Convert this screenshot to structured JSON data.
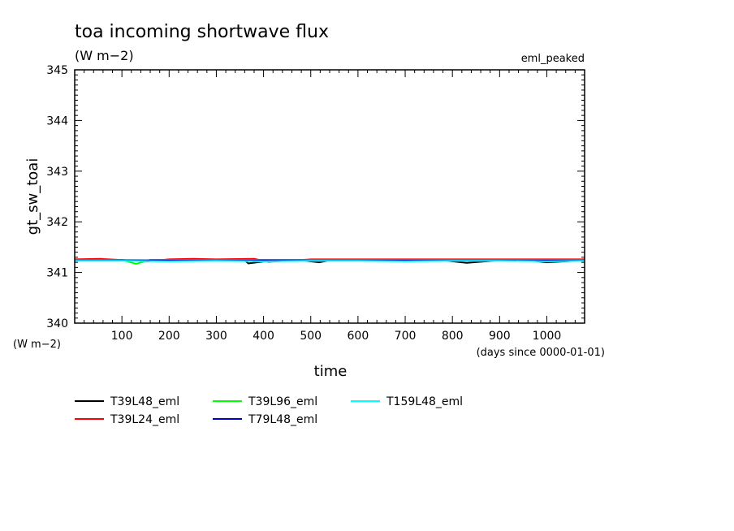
{
  "chart_data": {
    "type": "line",
    "title": "toa incoming shortwave flux",
    "subtitle": "(W m−2)",
    "run_label": "eml_peaked",
    "ylabel": "gt_sw_toai",
    "yunit_label": "(W m−2)",
    "xlabel": "time",
    "xunit_label": "(days since 0000-01-01)",
    "xlim": [
      0,
      1080
    ],
    "ylim": [
      340,
      345
    ],
    "xticks": [
      100,
      200,
      300,
      400,
      500,
      600,
      700,
      800,
      900,
      1000
    ],
    "yticks": [
      340,
      341,
      342,
      343,
      344,
      345
    ],
    "grid": false,
    "legend_position": "bottom-left",
    "series": [
      {
        "name": "T39L48_eml",
        "color": "#000000",
        "x": [
          0,
          60,
          120,
          180,
          240,
          300,
          360,
          368,
          420,
          480,
          518,
          540,
          600,
          660,
          720,
          780,
          830,
          900,
          960,
          1000,
          1080
        ],
        "y": [
          341.24,
          341.24,
          341.24,
          341.23,
          341.24,
          341.24,
          341.24,
          341.18,
          341.24,
          341.24,
          341.2,
          341.24,
          341.24,
          341.24,
          341.24,
          341.24,
          341.19,
          341.24,
          341.24,
          341.2,
          341.24
        ]
      },
      {
        "name": "T39L24_eml",
        "color": "#ff0000",
        "x": [
          0,
          55,
          155,
          200,
          250,
          300,
          380,
          410,
          500,
          600,
          700,
          800,
          900,
          1000,
          1080
        ],
        "y": [
          341.26,
          341.27,
          341.22,
          341.26,
          341.27,
          341.26,
          341.27,
          341.21,
          341.26,
          341.26,
          341.26,
          341.26,
          341.26,
          341.26,
          341.26
        ]
      },
      {
        "name": "T39L96_eml",
        "color": "#00ff00",
        "x": [
          0,
          60,
          100,
          130,
          160,
          200,
          300,
          400,
          500,
          600,
          700,
          800,
          900,
          1000,
          1080
        ],
        "y": [
          341.25,
          341.25,
          341.25,
          341.17,
          341.25,
          341.25,
          341.25,
          341.25,
          341.25,
          341.25,
          341.25,
          341.25,
          341.25,
          341.25,
          341.25
        ]
      },
      {
        "name": "T79L48_eml",
        "color": "#0000cc",
        "x": [
          0,
          100,
          200,
          300,
          400,
          500,
          600,
          700,
          800,
          900,
          1000,
          1080
        ],
        "y": [
          341.24,
          341.24,
          341.24,
          341.24,
          341.24,
          341.24,
          341.24,
          341.24,
          341.24,
          341.24,
          341.24,
          341.24
        ]
      },
      {
        "name": "T159L48_eml",
        "color": "#00ffff",
        "x": [
          0,
          100,
          200,
          300,
          400,
          500,
          600,
          700,
          800,
          900,
          1000,
          1080
        ],
        "y": [
          341.23,
          341.23,
          341.22,
          341.23,
          341.22,
          341.23,
          341.23,
          341.22,
          341.23,
          341.23,
          341.22,
          341.23
        ]
      }
    ]
  }
}
